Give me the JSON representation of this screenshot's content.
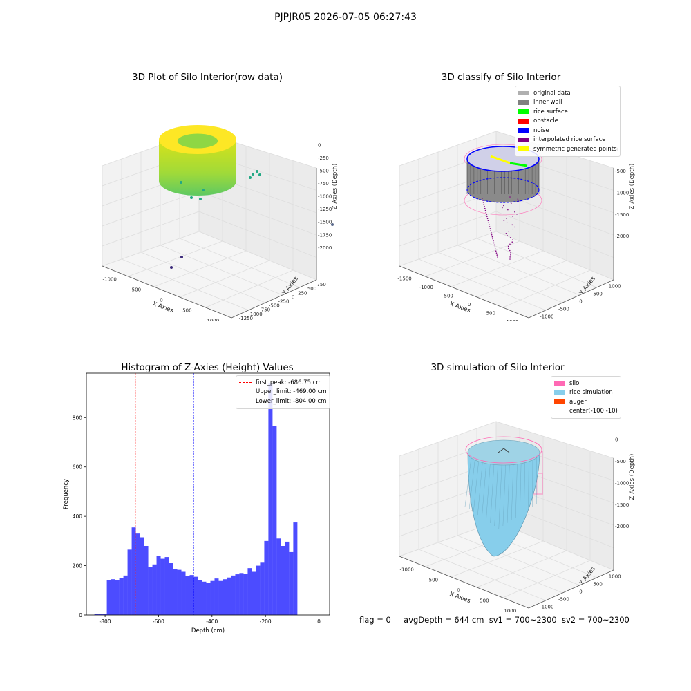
{
  "suptitle": "PJPJR05 2026-07-05 06:27:43",
  "panel1": {
    "title": "3D Plot of Silo Interior(row data)",
    "xlabel": "X Axies",
    "ylabel": "Y Axies",
    "zlabel": "Z Axies (Depth)",
    "xticks": [
      "-1000",
      "-500",
      "0",
      "500",
      "1000"
    ],
    "yticks": [
      "750",
      "500",
      "250",
      "0",
      "-250",
      "-500",
      "-750",
      "-1000",
      "-1250"
    ],
    "zticks": [
      "0",
      "-250",
      "-500",
      "-750",
      "-1000",
      "-1250",
      "-1500",
      "-1750",
      "-2000"
    ]
  },
  "panel2": {
    "title": "3D classify of Silo Interior",
    "xlabel": "X Axies",
    "ylabel": "Y Axies",
    "zlabel": "Z Axies (Depth)",
    "xticks": [
      "-1500",
      "-1000",
      "-500",
      "0",
      "500",
      "1000"
    ],
    "yticks": [
      "1000",
      "500",
      "0",
      "-500",
      "-1000"
    ],
    "zticks": [
      "0",
      "-500",
      "-1000",
      "-1500",
      "-2000"
    ],
    "legend": [
      {
        "label": "original data",
        "color": "#b0b0b0"
      },
      {
        "label": "inner wall",
        "color": "#808080"
      },
      {
        "label": "rice surface",
        "color": "#00ff00"
      },
      {
        "label": "obstacle",
        "color": "#ff0000"
      },
      {
        "label": "noise",
        "color": "#0000ff"
      },
      {
        "label": "interpolated rice surface",
        "color": "#800080"
      },
      {
        "label": "symmetric generated points",
        "color": "#ffff00"
      }
    ]
  },
  "panel4": {
    "title": "3D simulation of Silo Interior",
    "xlabel": "X Axies",
    "ylabel": "Y Axies",
    "zlabel": "Z Axies (Depth)",
    "xticks": [
      "-1000",
      "-500",
      "0",
      "500",
      "1000"
    ],
    "yticks": [
      "1000",
      "500",
      "0",
      "-500",
      "-1000"
    ],
    "zticks": [
      "0",
      "-500",
      "-1000",
      "-1500",
      "-2000"
    ],
    "legend": [
      {
        "label": "silo",
        "color": "#ff69b4"
      },
      {
        "label": "rice simulation",
        "color": "#87ceeb"
      },
      {
        "label": "auger",
        "color": "#ff4500"
      },
      {
        "label": "center(-100,-10)",
        "color": ""
      }
    ]
  },
  "chart_data": {
    "type": "bar",
    "title": "Histogram of Z-Axies (Height) Values",
    "xlabel": "Depth (cm)",
    "ylabel": "Frequency",
    "xlim": [
      -870,
      40
    ],
    "ylim": [
      0,
      980
    ],
    "xticks": [
      -800,
      -600,
      -400,
      -200,
      0
    ],
    "yticks": [
      0,
      200,
      400,
      600,
      800
    ],
    "bin_start": -840,
    "bin_width": 15.5,
    "values": [
      3,
      3,
      5,
      140,
      145,
      140,
      150,
      160,
      265,
      355,
      330,
      315,
      280,
      195,
      205,
      238,
      228,
      235,
      210,
      187,
      183,
      175,
      158,
      162,
      155,
      140,
      135,
      130,
      138,
      148,
      138,
      145,
      152,
      160,
      165,
      170,
      168,
      190,
      175,
      200,
      212,
      300,
      940,
      765,
      310,
      280,
      297,
      255,
      375
    ],
    "color": "#0000ff",
    "vlines": [
      {
        "label": "first_peak: -686.75 cm",
        "x": -686.75,
        "color": "#ff0000"
      },
      {
        "label": "Upper_limit: -469.00 cm",
        "x": -469.0,
        "color": "#0000ff"
      },
      {
        "label": "Lower_limit: -804.00 cm",
        "x": -804.0,
        "color": "#0000ff"
      }
    ]
  },
  "status": {
    "flag": "flag = 0",
    "avg": "avgDepth = 644 cm",
    "sv1": "sv1 = 700~2300",
    "sv2": "sv2 = 700~2300"
  }
}
